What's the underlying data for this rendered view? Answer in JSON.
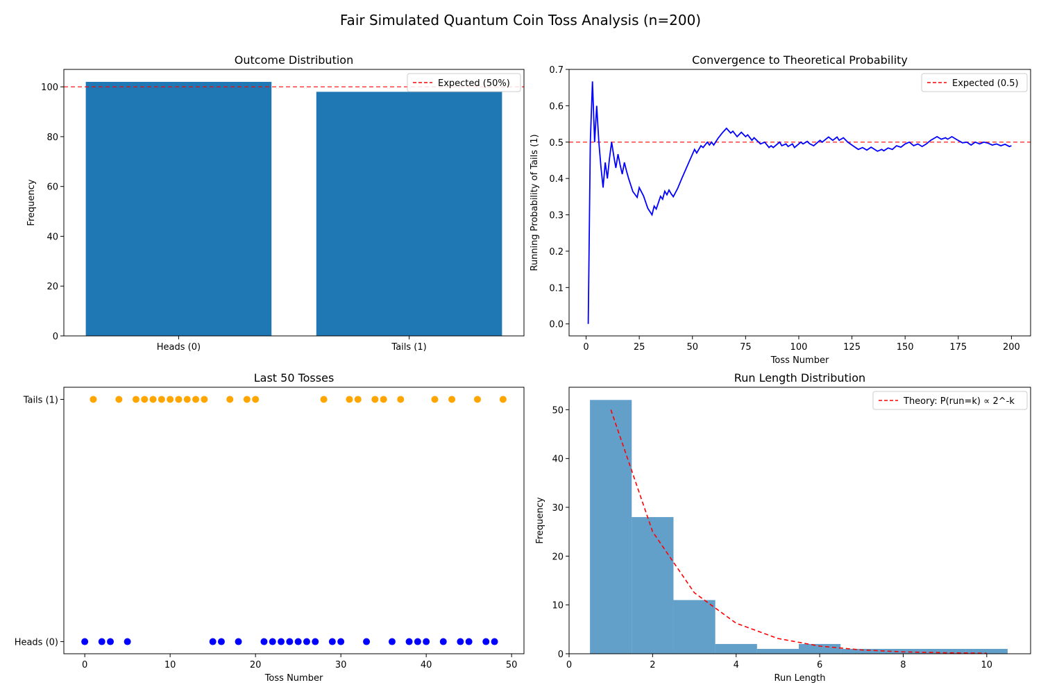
{
  "figure": {
    "title": "Fair Simulated Quantum Coin Toss Analysis (n=200)"
  },
  "chart_data": [
    {
      "type": "bar",
      "title": "Outcome Distribution",
      "xlabel": "",
      "ylabel": "Frequency",
      "categories": [
        "Heads (0)",
        "Tails (1)"
      ],
      "values": [
        102,
        98
      ],
      "ylim": [
        0,
        107
      ],
      "yticks": [
        0,
        20,
        40,
        60,
        80,
        100
      ],
      "bar_color": "#1f77b4",
      "reference_line": {
        "value": 100,
        "label": "Expected (50%)",
        "color": "#ff0000",
        "style": "dashed"
      },
      "legend": "top-right",
      "grid": false
    },
    {
      "type": "line",
      "title": "Convergence to Theoretical Probability",
      "xlabel": "Toss Number",
      "ylabel": "Running Probability of Tails (1)",
      "xlim": [
        -8,
        209
      ],
      "ylim": [
        -0.033,
        0.7
      ],
      "xticks": [
        0,
        25,
        50,
        75,
        100,
        125,
        150,
        175,
        200
      ],
      "yticks": [
        0.0,
        0.1,
        0.2,
        0.3,
        0.4,
        0.5,
        0.6,
        0.7
      ],
      "line_color": "#0000ff",
      "points": [
        [
          1,
          0.0
        ],
        [
          2,
          0.5
        ],
        [
          3,
          0.667
        ],
        [
          4,
          0.5
        ],
        [
          5,
          0.6
        ],
        [
          6,
          0.5
        ],
        [
          7,
          0.43
        ],
        [
          8,
          0.375
        ],
        [
          9,
          0.444
        ],
        [
          10,
          0.4
        ],
        [
          11,
          0.455
        ],
        [
          12,
          0.5
        ],
        [
          13,
          0.462
        ],
        [
          14,
          0.429
        ],
        [
          15,
          0.467
        ],
        [
          16,
          0.438
        ],
        [
          17,
          0.412
        ],
        [
          18,
          0.444
        ],
        [
          19,
          0.421
        ],
        [
          20,
          0.4
        ],
        [
          22,
          0.364
        ],
        [
          24,
          0.348
        ],
        [
          25,
          0.375
        ],
        [
          27,
          0.352
        ],
        [
          29,
          0.318
        ],
        [
          31,
          0.3
        ],
        [
          32,
          0.324
        ],
        [
          33,
          0.316
        ],
        [
          35,
          0.351
        ],
        [
          36,
          0.343
        ],
        [
          37,
          0.365
        ],
        [
          38,
          0.355
        ],
        [
          39,
          0.368
        ],
        [
          40,
          0.358
        ],
        [
          41,
          0.35
        ],
        [
          43,
          0.372
        ],
        [
          45,
          0.4
        ],
        [
          48,
          0.44
        ],
        [
          51,
          0.48
        ],
        [
          52,
          0.47
        ],
        [
          54,
          0.49
        ],
        [
          55,
          0.485
        ],
        [
          57,
          0.5
        ],
        [
          58,
          0.492
        ],
        [
          59,
          0.5
        ],
        [
          60,
          0.492
        ],
        [
          62,
          0.51
        ],
        [
          64,
          0.525
        ],
        [
          66,
          0.538
        ],
        [
          68,
          0.525
        ],
        [
          69,
          0.53
        ],
        [
          71,
          0.515
        ],
        [
          73,
          0.527
        ],
        [
          75,
          0.515
        ],
        [
          76,
          0.52
        ],
        [
          78,
          0.505
        ],
        [
          79,
          0.512
        ],
        [
          82,
          0.495
        ],
        [
          84,
          0.5
        ],
        [
          86,
          0.485
        ],
        [
          87,
          0.49
        ],
        [
          88,
          0.485
        ],
        [
          91,
          0.5
        ],
        [
          92,
          0.49
        ],
        [
          94,
          0.495
        ],
        [
          95,
          0.488
        ],
        [
          97,
          0.495
        ],
        [
          98,
          0.485
        ],
        [
          101,
          0.5
        ],
        [
          102,
          0.495
        ],
        [
          104,
          0.502
        ],
        [
          105,
          0.496
        ],
        [
          107,
          0.49
        ],
        [
          110,
          0.505
        ],
        [
          111,
          0.5
        ],
        [
          114,
          0.514
        ],
        [
          116,
          0.505
        ],
        [
          118,
          0.514
        ],
        [
          119,
          0.505
        ],
        [
          121,
          0.512
        ],
        [
          123,
          0.5
        ],
        [
          126,
          0.488
        ],
        [
          128,
          0.48
        ],
        [
          130,
          0.485
        ],
        [
          132,
          0.478
        ],
        [
          134,
          0.486
        ],
        [
          137,
          0.475
        ],
        [
          139,
          0.48
        ],
        [
          140,
          0.476
        ],
        [
          142,
          0.484
        ],
        [
          144,
          0.48
        ],
        [
          146,
          0.49
        ],
        [
          148,
          0.486
        ],
        [
          150,
          0.495
        ],
        [
          152,
          0.5
        ],
        [
          154,
          0.49
        ],
        [
          156,
          0.495
        ],
        [
          158,
          0.488
        ],
        [
          160,
          0.495
        ],
        [
          162,
          0.505
        ],
        [
          165,
          0.515
        ],
        [
          167,
          0.508
        ],
        [
          169,
          0.512
        ],
        [
          170,
          0.508
        ],
        [
          172,
          0.515
        ],
        [
          174,
          0.508
        ],
        [
          177,
          0.498
        ],
        [
          179,
          0.5
        ],
        [
          181,
          0.492
        ],
        [
          183,
          0.5
        ],
        [
          185,
          0.495
        ],
        [
          187,
          0.5
        ],
        [
          189,
          0.497
        ],
        [
          191,
          0.492
        ],
        [
          193,
          0.495
        ],
        [
          195,
          0.49
        ],
        [
          197,
          0.494
        ],
        [
          199,
          0.488
        ],
        [
          200,
          0.49
        ]
      ],
      "reference_line": {
        "value": 0.5,
        "label": "Expected (0.5)",
        "color": "#ff0000",
        "style": "dashed"
      },
      "legend": "top-right",
      "grid": false
    },
    {
      "type": "scatter",
      "title": "Last 50 Tosses",
      "xlabel": "Toss Number",
      "ylabel": "",
      "xlim": [
        -2.45,
        51.45
      ],
      "ylim": [
        -0.05,
        1.05
      ],
      "xticks": [
        0,
        10,
        20,
        30,
        40,
        50
      ],
      "ytick_labels": [
        "Heads (0)",
        "Tails (1)"
      ],
      "heads_color": "#0000ff",
      "tails_color": "#ffa500",
      "tosses": [
        0,
        1,
        0,
        0,
        1,
        0,
        1,
        1,
        1,
        1,
        1,
        1,
        1,
        1,
        1,
        0,
        0,
        1,
        0,
        1,
        1,
        0,
        0,
        0,
        0,
        0,
        0,
        0,
        1,
        0,
        0,
        1,
        1,
        0,
        1,
        1,
        0,
        1,
        0,
        0,
        0,
        1,
        0,
        1,
        0,
        0,
        1,
        0,
        0,
        1
      ],
      "grid": false
    },
    {
      "type": "bar",
      "title": "Run Length Distribution",
      "xlabel": "Run Length",
      "ylabel": "Frequency",
      "xlim": [
        0,
        11.05
      ],
      "ylim": [
        0,
        54.6
      ],
      "xticks": [
        0,
        2,
        4,
        6,
        8,
        10
      ],
      "yticks": [
        0,
        10,
        20,
        30,
        40,
        50
      ],
      "bar_color": "#1f77b4",
      "bar_opacity": 0.7,
      "bins": [
        {
          "from": 0.5,
          "to": 1.5,
          "count": 52
        },
        {
          "from": 1.5,
          "to": 2.5,
          "count": 28
        },
        {
          "from": 2.5,
          "to": 3.5,
          "count": 11
        },
        {
          "from": 3.5,
          "to": 4.5,
          "count": 2
        },
        {
          "from": 4.5,
          "to": 5.5,
          "count": 1
        },
        {
          "from": 5.5,
          "to": 6.5,
          "count": 2
        },
        {
          "from": 6.5,
          "to": 7.5,
          "count": 1
        },
        {
          "from": 7.5,
          "to": 8.5,
          "count": 1
        },
        {
          "from": 8.5,
          "to": 9.5,
          "count": 1
        },
        {
          "from": 9.5,
          "to": 10.5,
          "count": 1
        }
      ],
      "theory_curve": {
        "label": "Theory: P(run=k) ∝ 2^-k",
        "color": "#ff0000",
        "style": "dashed",
        "points": [
          [
            1,
            50
          ],
          [
            2,
            25
          ],
          [
            3,
            12.5
          ],
          [
            4,
            6.25
          ],
          [
            5,
            3.125
          ],
          [
            6,
            1.5625
          ],
          [
            7,
            0.78125
          ],
          [
            8,
            0.390625
          ],
          [
            9,
            0.1953125
          ],
          [
            10,
            0.09765625
          ]
        ]
      },
      "legend": "top-right",
      "grid": false
    }
  ]
}
